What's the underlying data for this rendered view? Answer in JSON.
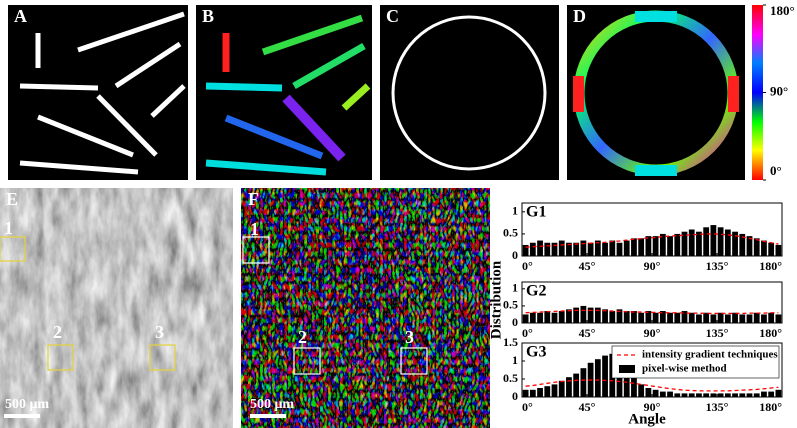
{
  "panels": {
    "labels": [
      "A",
      "B",
      "C",
      "D",
      "E",
      "F"
    ],
    "colorbar": {
      "ticks": [
        {
          "value": 180,
          "label": "180°"
        },
        {
          "value": 90,
          "label": "90°"
        },
        {
          "value": 0,
          "label": "0°"
        }
      ],
      "lim": [
        0,
        180
      ]
    },
    "scale_bar": "500 μm",
    "regions": [
      "1",
      "2",
      "3"
    ],
    "y_label": "Distribution"
  },
  "chart_data": [
    {
      "type": "bar",
      "title": "G1",
      "x": [
        2.5,
        7.5,
        12.5,
        17.5,
        22.5,
        27.5,
        32.5,
        37.5,
        42.5,
        47.5,
        52.5,
        57.5,
        62.5,
        67.5,
        72.5,
        77.5,
        82.5,
        87.5,
        92.5,
        97.5,
        102.5,
        107.5,
        112.5,
        117.5,
        122.5,
        127.5,
        132.5,
        137.5,
        142.5,
        147.5,
        152.5,
        157.5,
        162.5,
        167.5,
        172.5,
        177.5
      ],
      "series": [
        {
          "color": "#000000",
          "values": [
            0.25,
            0.3,
            0.35,
            0.3,
            0.3,
            0.35,
            0.3,
            0.3,
            0.35,
            0.3,
            0.35,
            0.3,
            0.35,
            0.3,
            0.35,
            0.4,
            0.4,
            0.45,
            0.45,
            0.5,
            0.45,
            0.5,
            0.55,
            0.6,
            0.55,
            0.65,
            0.7,
            0.65,
            0.6,
            0.55,
            0.5,
            0.45,
            0.4,
            0.35,
            0.3,
            0.25
          ]
        },
        {
          "color": "#ff0000",
          "style": "dashed",
          "values": [
            0.2,
            0.21,
            0.22,
            0.23,
            0.24,
            0.25,
            0.26,
            0.27,
            0.28,
            0.29,
            0.3,
            0.31,
            0.33,
            0.34,
            0.36,
            0.38,
            0.39,
            0.41,
            0.42,
            0.44,
            0.45,
            0.46,
            0.47,
            0.48,
            0.49,
            0.5,
            0.5,
            0.49,
            0.48,
            0.46,
            0.43,
            0.4,
            0.37,
            0.33,
            0.3,
            0.27
          ]
        }
      ],
      "xlim": [
        0,
        180
      ],
      "xticks": [
        {
          "value": 0,
          "label": "0°"
        },
        {
          "value": 45,
          "label": "45°"
        },
        {
          "value": 90,
          "label": "90°"
        },
        {
          "value": 135,
          "label": "135°"
        },
        {
          "value": 180,
          "label": "180°"
        }
      ],
      "ylim": [
        0,
        1.2
      ],
      "yticks": [
        0,
        0.5,
        1
      ]
    },
    {
      "type": "bar",
      "title": "G2",
      "x": [
        2.5,
        7.5,
        12.5,
        17.5,
        22.5,
        27.5,
        32.5,
        37.5,
        42.5,
        47.5,
        52.5,
        57.5,
        62.5,
        67.5,
        72.5,
        77.5,
        82.5,
        87.5,
        92.5,
        97.5,
        102.5,
        107.5,
        112.5,
        117.5,
        122.5,
        127.5,
        132.5,
        137.5,
        142.5,
        147.5,
        152.5,
        157.5,
        162.5,
        167.5,
        172.5,
        177.5
      ],
      "series": [
        {
          "color": "#000000",
          "values": [
            0.25,
            0.3,
            0.3,
            0.35,
            0.3,
            0.35,
            0.4,
            0.45,
            0.5,
            0.45,
            0.45,
            0.4,
            0.35,
            0.4,
            0.35,
            0.35,
            0.3,
            0.35,
            0.3,
            0.35,
            0.3,
            0.3,
            0.35,
            0.3,
            0.25,
            0.3,
            0.25,
            0.3,
            0.25,
            0.3,
            0.25,
            0.25,
            0.3,
            0.25,
            0.3,
            0.25
          ]
        },
        {
          "color": "#ff0000",
          "style": "dashed",
          "values": [
            0.3,
            0.31,
            0.32,
            0.33,
            0.34,
            0.35,
            0.36,
            0.37,
            0.37,
            0.37,
            0.37,
            0.36,
            0.35,
            0.34,
            0.33,
            0.32,
            0.32,
            0.31,
            0.31,
            0.3,
            0.3,
            0.3,
            0.29,
            0.29,
            0.29,
            0.28,
            0.28,
            0.28,
            0.28,
            0.28,
            0.28,
            0.29,
            0.29,
            0.29,
            0.3,
            0.3
          ]
        }
      ],
      "xlim": [
        0,
        180
      ],
      "xticks": [
        {
          "value": 0,
          "label": "0°"
        },
        {
          "value": 45,
          "label": "45°"
        },
        {
          "value": 90,
          "label": "90°"
        },
        {
          "value": 135,
          "label": "135°"
        },
        {
          "value": 180,
          "label": "180°"
        }
      ],
      "ylim": [
        0,
        1.2
      ],
      "yticks": [
        0,
        0.5,
        1
      ]
    },
    {
      "type": "bar",
      "title": "G3",
      "x_label": "Angle",
      "x": [
        2.5,
        7.5,
        12.5,
        17.5,
        22.5,
        27.5,
        32.5,
        37.5,
        42.5,
        47.5,
        52.5,
        57.5,
        62.5,
        67.5,
        72.5,
        77.5,
        82.5,
        87.5,
        92.5,
        97.5,
        102.5,
        107.5,
        112.5,
        117.5,
        122.5,
        127.5,
        132.5,
        137.5,
        142.5,
        147.5,
        152.5,
        157.5,
        162.5,
        167.5,
        172.5,
        177.5
      ],
      "series": [
        {
          "name": "pixel-wise method",
          "color": "#000000",
          "values": [
            0.2,
            0.2,
            0.25,
            0.3,
            0.35,
            0.45,
            0.55,
            0.65,
            0.8,
            0.95,
            1.05,
            1.15,
            1.2,
            0.95,
            0.75,
            0.55,
            0.35,
            0.25,
            0.2,
            0.15,
            0.15,
            0.1,
            0.1,
            0.1,
            0.1,
            0.1,
            0.1,
            0.1,
            0.1,
            0.1,
            0.1,
            0.1,
            0.1,
            0.15,
            0.15,
            0.2
          ]
        },
        {
          "name": "intensity gradient techniques",
          "color": "#ff0000",
          "style": "dashed",
          "values": [
            0.3,
            0.32,
            0.35,
            0.38,
            0.41,
            0.43,
            0.45,
            0.46,
            0.47,
            0.47,
            0.47,
            0.46,
            0.45,
            0.43,
            0.41,
            0.38,
            0.35,
            0.32,
            0.29,
            0.26,
            0.23,
            0.21,
            0.19,
            0.18,
            0.17,
            0.17,
            0.17,
            0.17,
            0.17,
            0.18,
            0.19,
            0.2,
            0.21,
            0.23,
            0.25,
            0.27
          ]
        }
      ],
      "legend": "upper right",
      "xlim": [
        0,
        180
      ],
      "xticks": [
        {
          "value": 0,
          "label": "0°"
        },
        {
          "value": 45,
          "label": "45°"
        },
        {
          "value": 90,
          "label": "90°"
        },
        {
          "value": 135,
          "label": "135°"
        },
        {
          "value": 180,
          "label": "180°"
        }
      ],
      "ylim": [
        0,
        1.5
      ],
      "yticks": [
        0,
        0.5,
        1,
        1.5
      ]
    }
  ]
}
